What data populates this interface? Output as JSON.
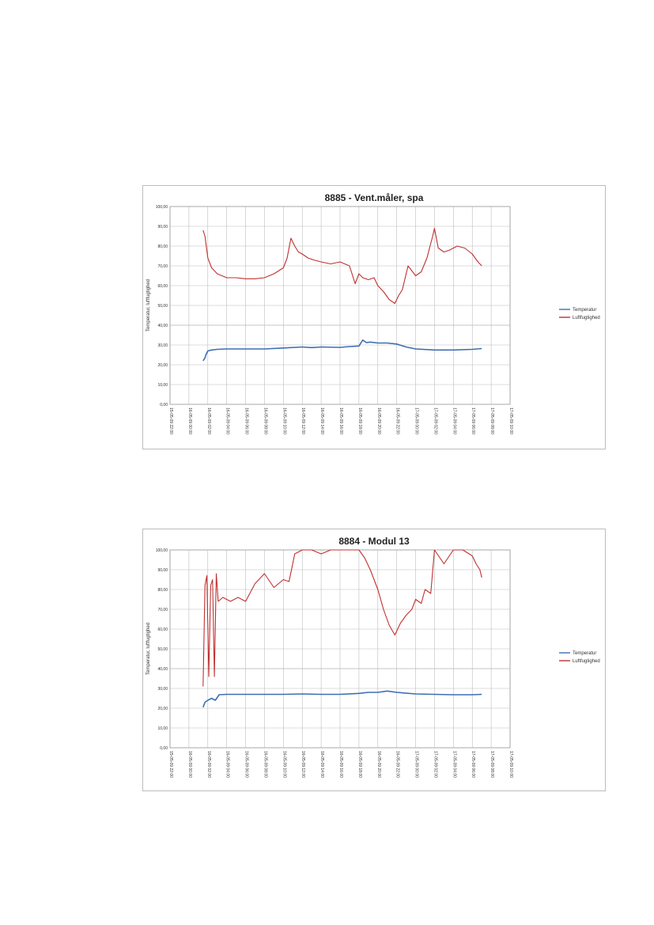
{
  "colors": {
    "temperature": "#3e6eb4",
    "humidity": "#c03030",
    "grid": "#bdbdbd"
  },
  "chart_data": [
    {
      "type": "line",
      "title": "8885 - Vent.måler, spa",
      "ylabel": "Temperatur, luftfugtighed",
      "ylim": [
        0,
        100
      ],
      "yticks": [
        "0,00",
        "10,00",
        "20,00",
        "30,00",
        "40,00",
        "50,00",
        "60,00",
        "70,00",
        "80,00",
        "90,00",
        "100,00"
      ],
      "xlim": [
        0,
        18
      ],
      "xticks": [
        "15-05-09 22:00",
        "16-05-09 00:00",
        "16-05-09 02:00",
        "16-05-09 04:00",
        "16-05-09 06:00",
        "16-05-09 08:00",
        "16-05-09 10:00",
        "16-05-09 12:00",
        "16-05-09 14:00",
        "16-05-09 16:00",
        "16-05-09 18:00",
        "16-05-09 20:00",
        "16-05-09 22:00",
        "17-05-09 00:00",
        "17-05-09 02:00",
        "17-05-09 04:00",
        "17-05-09 06:00",
        "17-05-09 08:00",
        "17-05-09 10:00"
      ],
      "grid": true,
      "legend_position": "right",
      "series": [
        {
          "name": "Temperatur",
          "x": [
            1.75,
            1.85,
            1.9,
            2.0,
            2.2,
            2.5,
            3,
            4,
            5,
            6,
            7,
            7.5,
            8,
            9,
            9.5,
            10,
            10.2,
            10.4,
            10.6,
            11,
            11.5,
            12,
            12.5,
            13,
            14,
            15,
            16,
            16.5
          ],
          "y": [
            22,
            23.5,
            25,
            27,
            27.5,
            27.8,
            28,
            28,
            28,
            28.5,
            29,
            28.7,
            29,
            28.8,
            29.2,
            29.5,
            32.5,
            31.2,
            31.5,
            31,
            31,
            30.5,
            29,
            28,
            27.5,
            27.5,
            27.8,
            28.2
          ]
        },
        {
          "name": "Luftfugtighed",
          "x": [
            1.75,
            1.85,
            2.0,
            2.2,
            2.5,
            3,
            3.5,
            4,
            4.5,
            5,
            5.5,
            6,
            6.2,
            6.4,
            6.6,
            6.8,
            7,
            7.3,
            7.6,
            8,
            8.5,
            9,
            9.5,
            9.8,
            10,
            10.2,
            10.5,
            10.8,
            11,
            11.3,
            11.6,
            11.9,
            12.1,
            12.3,
            12.6,
            13,
            13.3,
            13.6,
            13.9,
            14,
            14.2,
            14.5,
            14.8,
            15.2,
            15.6,
            16,
            16.3,
            16.5
          ],
          "y": [
            88,
            85,
            74,
            69,
            66,
            64,
            64,
            63.5,
            63.5,
            64,
            66,
            69,
            74,
            84,
            80,
            77,
            76,
            74,
            73,
            72,
            71,
            72,
            70,
            61,
            66,
            64,
            63,
            64,
            60,
            57,
            53,
            51,
            55,
            58,
            70,
            65,
            67,
            74,
            85,
            89,
            79,
            77,
            78,
            80,
            79,
            76,
            72,
            70
          ]
        }
      ]
    },
    {
      "type": "line",
      "title": "8884 - Modul 13",
      "ylabel": "Temperatur, luftfugtighed",
      "ylim": [
        0,
        100
      ],
      "yticks": [
        "0,00",
        "10,00",
        "20,00",
        "30,00",
        "40,00",
        "50,00",
        "60,00",
        "70,00",
        "80,00",
        "90,00",
        "100,00"
      ],
      "xlim": [
        0,
        18
      ],
      "xticks": [
        "15-05-09 22:00",
        "16-05-09 00:00",
        "16-05-09 02:00",
        "16-05-09 04:00",
        "16-05-09 06:00",
        "16-05-09 08:00",
        "16-05-09 10:00",
        "16-05-09 12:00",
        "16-05-09 14:00",
        "16-05-09 16:00",
        "16-05-09 18:00",
        "16-05-09 20:00",
        "16-05-09 22:00",
        "17-05-09 00:00",
        "17-05-09 02:00",
        "17-05-09 04:00",
        "17-05-09 06:00",
        "17-05-09 08:00",
        "17-05-09 10:00"
      ],
      "grid": true,
      "legend_position": "right",
      "series": [
        {
          "name": "Temperatur",
          "x": [
            1.75,
            1.85,
            2.0,
            2.2,
            2.4,
            2.6,
            3,
            4,
            5,
            6,
            7,
            8,
            9,
            10,
            10.5,
            11,
            11.5,
            12,
            13,
            14,
            15,
            16,
            16.5
          ],
          "y": [
            20.5,
            23,
            24,
            25,
            24,
            26.8,
            27,
            27,
            27,
            27,
            27.2,
            27,
            27,
            27.5,
            28,
            28,
            28.7,
            28,
            27.2,
            27,
            26.8,
            26.8,
            27
          ]
        },
        {
          "name": "Luftfugtighed",
          "x": [
            1.75,
            1.85,
            1.95,
            2.05,
            2.15,
            2.25,
            2.35,
            2.45,
            2.55,
            2.8,
            3.2,
            3.6,
            4,
            4.5,
            5,
            5.5,
            6,
            6.3,
            6.6,
            7,
            7.5,
            8,
            8.5,
            9,
            9.5,
            10,
            10.3,
            10.6,
            11,
            11.3,
            11.6,
            11.9,
            12.2,
            12.5,
            12.8,
            13,
            13.3,
            13.5,
            13.8,
            14,
            14.5,
            15,
            15.5,
            16,
            16.2,
            16.4,
            16.5
          ],
          "y": [
            31,
            82,
            87,
            36,
            82,
            85,
            36,
            88,
            74,
            76,
            74,
            76,
            74,
            83,
            88,
            81,
            85,
            84,
            98,
            100,
            100,
            98,
            100,
            100,
            100,
            100,
            96,
            90,
            80,
            70,
            62,
            57,
            63,
            67,
            70,
            75,
            73,
            80,
            78,
            100,
            93,
            100,
            100,
            97,
            93,
            90,
            86
          ]
        }
      ]
    }
  ]
}
